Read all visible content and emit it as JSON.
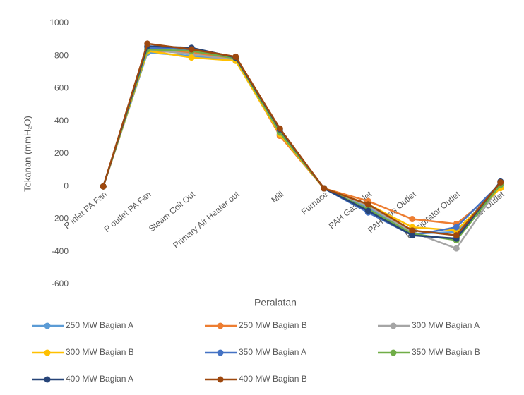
{
  "chart_data": {
    "type": "line",
    "x_label": "Peralatan",
    "y_label": "Tekanan (mmH₂O)",
    "categories": [
      "P inlet PA Fan",
      "P outlet PA Fan",
      "Steam Coil Out",
      "Primary Air Heater out",
      "Mill",
      "Furnace",
      "PAH Gas Inlet",
      "PAH Gas Outlet",
      "Precipitator Outlet",
      "ID Fan Outlet"
    ],
    "ylim": [
      -600,
      1000
    ],
    "yticks": [
      -600,
      -400,
      -200,
      0,
      200,
      400,
      600,
      800,
      1000
    ],
    "grid": false,
    "series": [
      {
        "name": "250 MW Bagian A",
        "color": "#5b9bd5",
        "values": [
          0,
          820,
          800,
          770,
          320,
          -12,
          -130,
          -290,
          -280,
          10
        ]
      },
      {
        "name": "250 MW Bagian B",
        "color": "#ed7d31",
        "values": [
          0,
          830,
          820,
          780,
          310,
          -12,
          -90,
          -200,
          -230,
          -10
        ]
      },
      {
        "name": "300 MW Bagian A",
        "color": "#a5a5a5",
        "values": [
          0,
          840,
          810,
          775,
          330,
          -12,
          -120,
          -280,
          -380,
          10
        ]
      },
      {
        "name": "300 MW Bagian B",
        "color": "#ffc000",
        "values": [
          0,
          830,
          790,
          770,
          320,
          -12,
          -110,
          -250,
          -270,
          -10
        ]
      },
      {
        "name": "350 MW Bagian A",
        "color": "#4472c4",
        "values": [
          0,
          850,
          840,
          790,
          340,
          -12,
          -160,
          -300,
          -250,
          20
        ]
      },
      {
        "name": "350 MW Bagian B",
        "color": "#70ad47",
        "values": [
          0,
          840,
          830,
          785,
          330,
          -12,
          -140,
          -290,
          -330,
          10
        ]
      },
      {
        "name": "400 MW Bagian A",
        "color": "#264478",
        "values": [
          0,
          860,
          850,
          790,
          350,
          -12,
          -150,
          -300,
          -320,
          30
        ]
      },
      {
        "name": "400 MW Bagian B",
        "color": "#9e480e",
        "values": [
          0,
          875,
          840,
          795,
          355,
          -12,
          -110,
          -270,
          -300,
          25
        ]
      }
    ]
  }
}
